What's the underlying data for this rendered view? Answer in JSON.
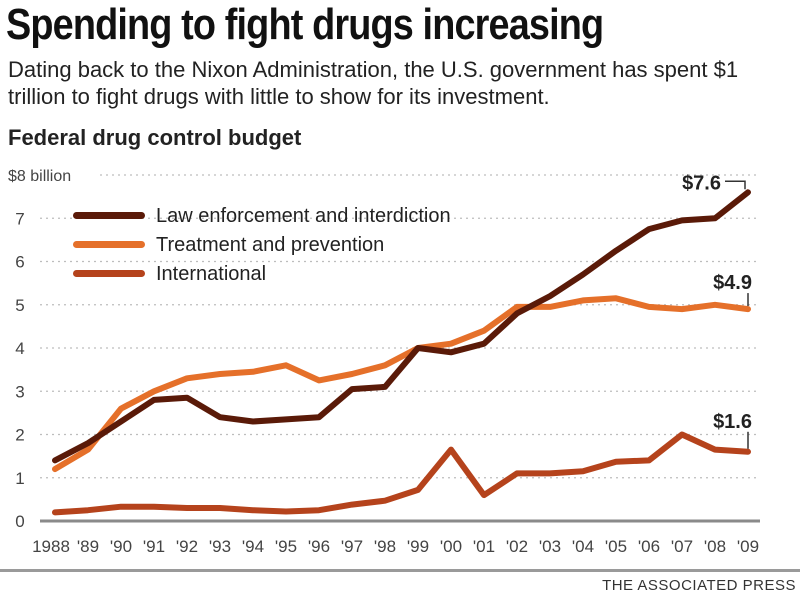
{
  "header": {
    "title": "Spending to fight drugs increasing",
    "subtitle": "Dating back to the Nixon Administration, the U.S. government has spent $1 trillion to fight drugs with little to show for its investment."
  },
  "footer": {
    "source": "THE ASSOCIATED PRESS"
  },
  "chart_data": {
    "type": "line",
    "title": "Federal drug control budget",
    "xlabel": "",
    "ylabel": "$8 billion",
    "ylim": [
      0,
      8
    ],
    "yticks": [
      "0",
      "1",
      "2",
      "3",
      "4",
      "5",
      "6",
      "7"
    ],
    "grid": true,
    "legend": "top-left",
    "x": [
      "1988",
      "'89",
      "'90",
      "'91",
      "'92",
      "'93",
      "'94",
      "'95",
      "'96",
      "'97",
      "'98",
      "'99",
      "'00",
      "'01",
      "'02",
      "'03",
      "'04",
      "'05",
      "'06",
      "'07",
      "'08",
      "'09"
    ],
    "series": [
      {
        "name": "Law enforcement and interdiction",
        "color": "#5a1a08",
        "values": [
          1.4,
          1.8,
          2.3,
          2.8,
          2.85,
          2.4,
          2.3,
          2.35,
          2.4,
          3.05,
          3.1,
          4.0,
          3.9,
          4.1,
          4.8,
          5.2,
          5.7,
          6.25,
          6.75,
          6.95,
          7.0,
          7.6
        ],
        "end_label": "$7.6"
      },
      {
        "name": "Treatment and prevention",
        "color": "#e5702a",
        "values": [
          1.2,
          1.65,
          2.6,
          3.0,
          3.3,
          3.4,
          3.45,
          3.6,
          3.25,
          3.4,
          3.6,
          4.0,
          4.1,
          4.4,
          4.95,
          4.95,
          5.1,
          5.15,
          4.95,
          4.9,
          5.0,
          4.9
        ],
        "end_label": "$4.9"
      },
      {
        "name": "International",
        "color": "#b5431c",
        "values": [
          0.2,
          0.25,
          0.33,
          0.33,
          0.3,
          0.3,
          0.25,
          0.22,
          0.25,
          0.38,
          0.47,
          0.72,
          1.65,
          0.6,
          1.1,
          1.1,
          1.15,
          1.37,
          1.4,
          2.0,
          1.65,
          1.6
        ],
        "end_label": "$1.6"
      }
    ]
  }
}
